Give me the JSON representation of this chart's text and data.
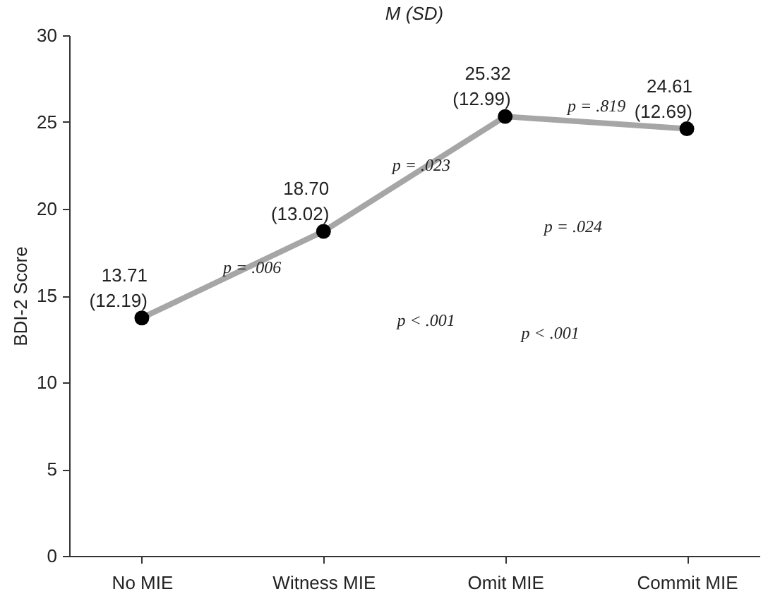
{
  "chart_data": {
    "type": "line",
    "title": "M (SD)",
    "ylabel": "BDI-2 Score",
    "categories": [
      "No MIE",
      "Witness MIE",
      "Omit MIE",
      "Commit MIE"
    ],
    "series": [
      {
        "color": "#a6a6a6",
        "values": [
          13.71,
          18.7,
          25.32,
          24.61
        ],
        "value_labels": [
          "13.71\n(12.19)",
          "18.70\n(13.02)",
          "25.32\n(12.99)",
          "24.61\n(12.69)"
        ]
      }
    ],
    "ylim": [
      0,
      30
    ],
    "yticks": [
      0,
      5,
      10,
      15,
      20,
      25,
      30
    ],
    "grid": false,
    "marker": "circle",
    "line_style": "solid",
    "annotations": [
      "p = .006",
      "p = .023",
      "p = .819",
      "p = .024",
      "p < .001",
      "p < .001"
    ]
  }
}
